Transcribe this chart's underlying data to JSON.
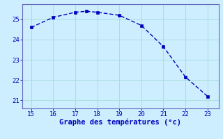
{
  "x": [
    15,
    16,
    17,
    17.5,
    18,
    19,
    20,
    21,
    22,
    23
  ],
  "y": [
    24.6,
    25.1,
    25.35,
    25.4,
    25.35,
    25.2,
    24.7,
    23.65,
    22.15,
    21.2
  ],
  "line_color": "#0000bb",
  "marker_color": "#0000bb",
  "background_color": "#cceeff",
  "grid_color": "#aadddd",
  "axis_color": "#0000bb",
  "spine_color": "#6666bb",
  "xlabel": "Graphe des températures (°c)",
  "xlim": [
    14.6,
    23.5
  ],
  "ylim": [
    20.6,
    25.75
  ],
  "xticks": [
    15,
    16,
    17,
    18,
    19,
    20,
    21,
    22,
    23
  ],
  "yticks": [
    21,
    22,
    23,
    24,
    25
  ],
  "tick_fontsize": 6.5,
  "label_fontsize": 7.5
}
